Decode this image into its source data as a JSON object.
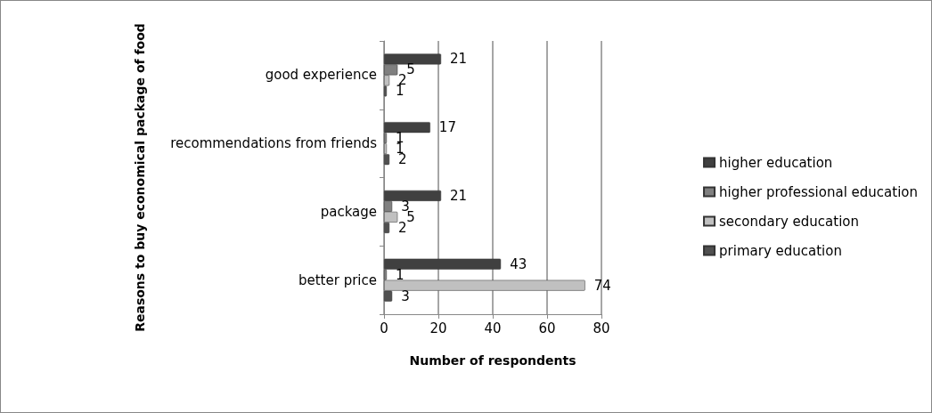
{
  "chart_data": {
    "type": "bar",
    "orientation": "horizontal",
    "xlabel": "Number of respondents",
    "ylabel": "Reasons to buy economical package of food",
    "categories": [
      "good experience",
      "recommendations from friends",
      "package",
      "better price"
    ],
    "series": [
      {
        "name": "higher education",
        "color": "#404040",
        "values": [
          21,
          17,
          21,
          43
        ]
      },
      {
        "name": "higher professional education",
        "color": "#808080",
        "values": [
          5,
          1,
          3,
          1
        ]
      },
      {
        "name": "secondary education",
        "color": "#c0c0c0",
        "values": [
          2,
          1,
          5,
          74
        ]
      },
      {
        "name": "primary education",
        "color": "#505050",
        "values": [
          1,
          2,
          2,
          3
        ]
      }
    ],
    "xlim": [
      0,
      80
    ],
    "xticks": [
      0,
      20,
      40,
      60,
      80
    ],
    "grid": "x",
    "legend": "right",
    "data_labels": true
  }
}
